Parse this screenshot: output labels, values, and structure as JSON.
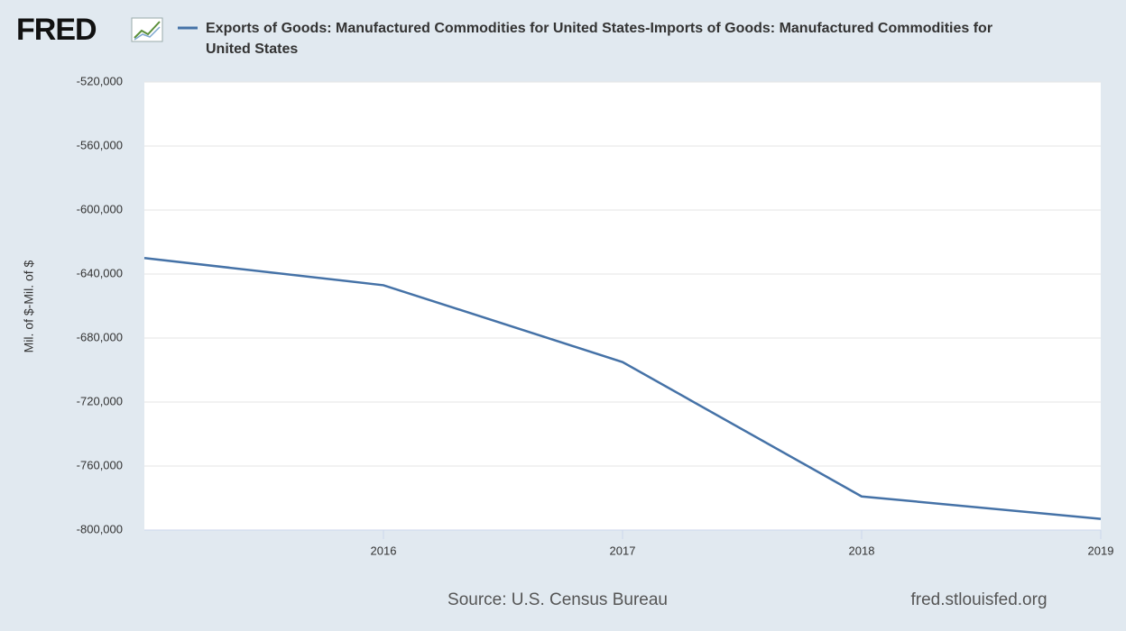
{
  "chart_data": {
    "type": "line",
    "logo": "FRED",
    "title": "Exports of Goods: Manufactured Commodities for United States-Imports of Goods: Manufactured Commodities for United States",
    "y_label": "Mil. of $-Mil. of $",
    "source": "Source: U.S. Census Bureau",
    "site": "fred.stlouisfed.org",
    "x": [
      2015,
      2016,
      2017,
      2018,
      2019
    ],
    "series": [
      {
        "name": "Exports of Goods: Manufactured Commodities for United States-Imports of Goods: Manufactured Commodities for United States",
        "color": "#4572a7",
        "values": [
          -630000,
          -647000,
          -695000,
          -779000,
          -793000
        ]
      }
    ],
    "xlim": [
      2015,
      2019
    ],
    "xticks": [
      2016,
      2017,
      2018,
      2019
    ],
    "ylim": [
      -800000,
      -520000
    ],
    "yticks": [
      {
        "value": -800000,
        "label": "-800,000"
      },
      {
        "value": -760000,
        "label": "-760,000"
      },
      {
        "value": -720000,
        "label": "-720,000"
      },
      {
        "value": -680000,
        "label": "-680,000"
      },
      {
        "value": -640000,
        "label": "-640,000"
      },
      {
        "value": -600000,
        "label": "-600,000"
      },
      {
        "value": -560000,
        "label": "-560,000"
      },
      {
        "value": -520000,
        "label": "-520,000"
      }
    ],
    "grid": true
  }
}
